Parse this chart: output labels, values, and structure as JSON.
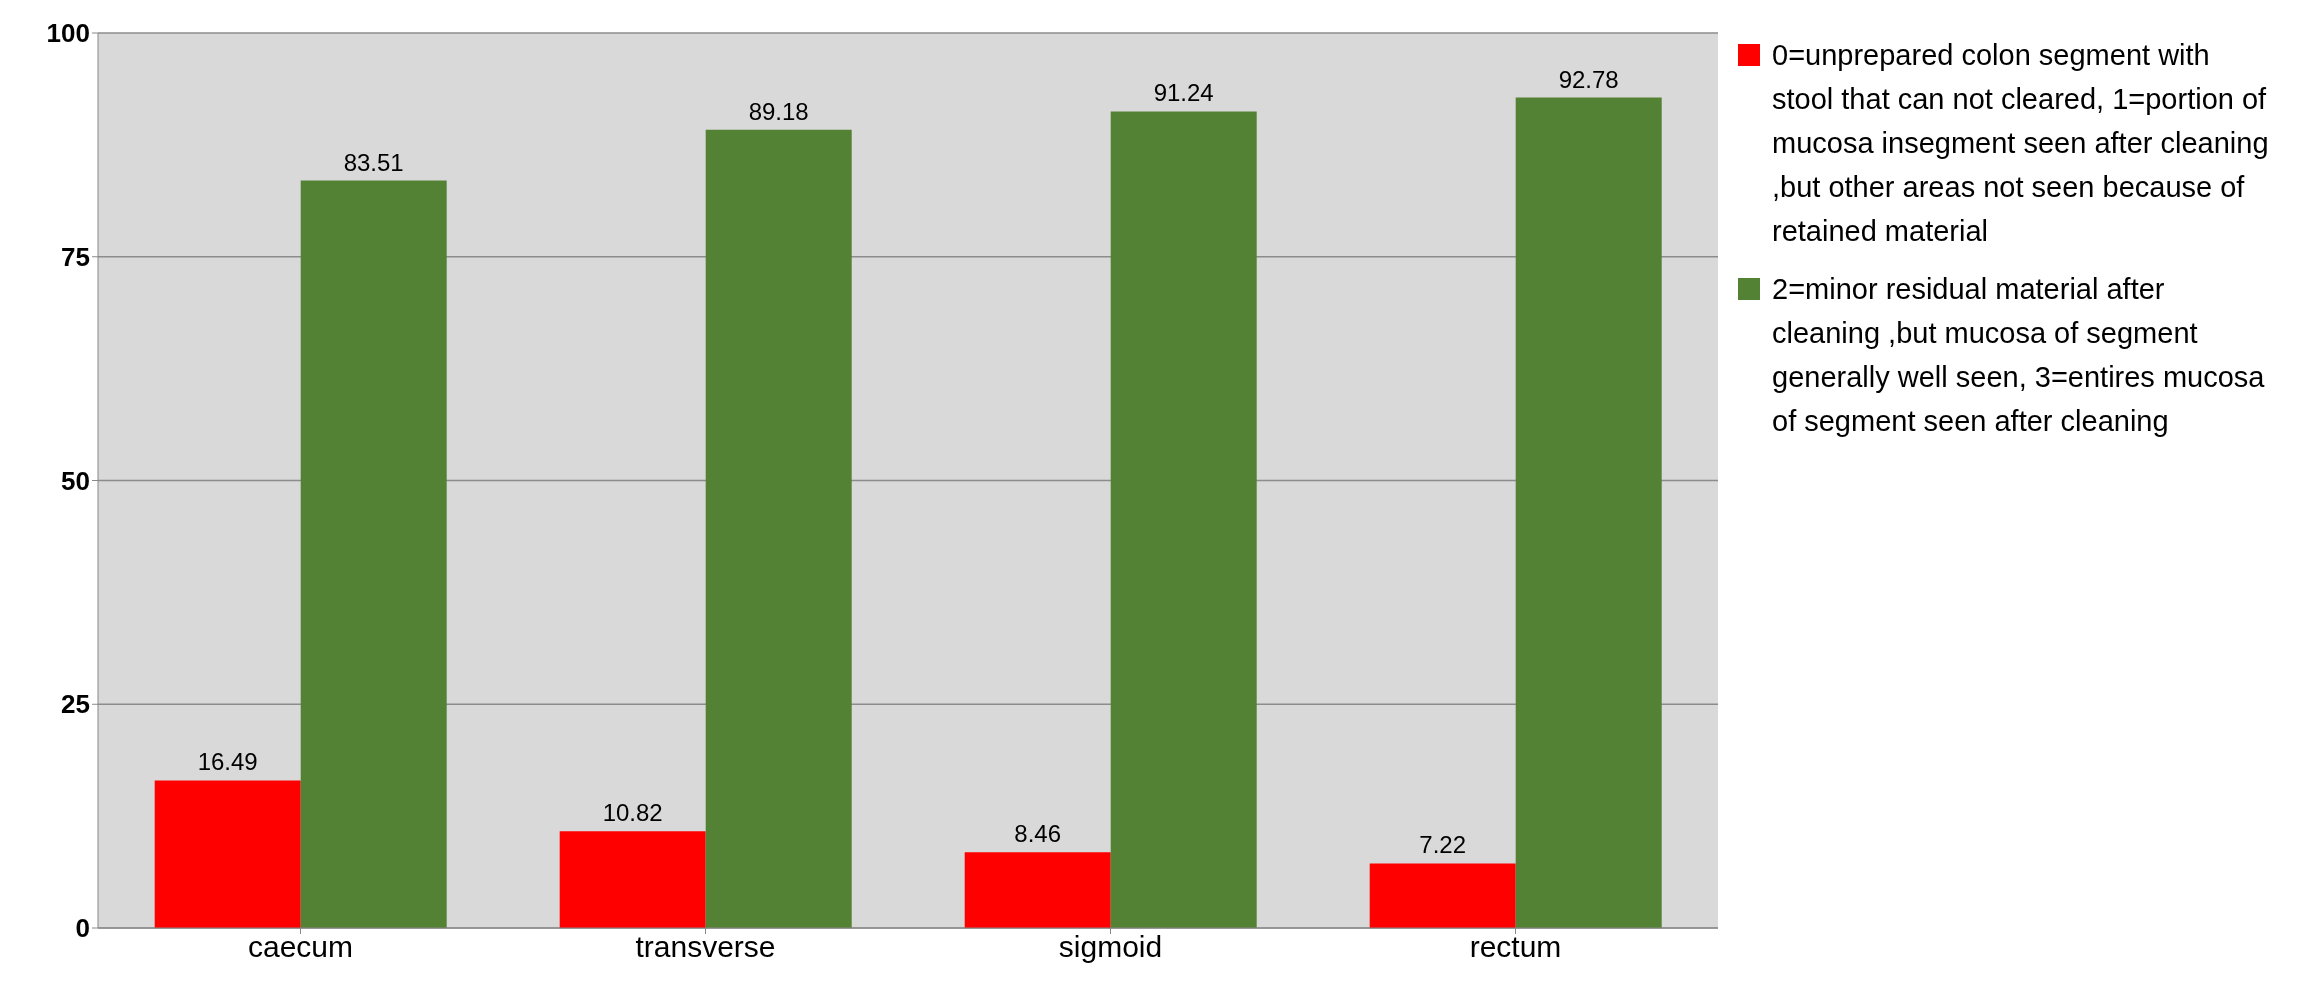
{
  "chart_data": {
    "type": "bar",
    "categories": [
      "caecum",
      "transverse",
      "sigmoid",
      "rectum"
    ],
    "series": [
      {
        "name": "0=unprepared colon segment with stool that can not cleared, 1=portion of mucosa insegment seen after cleaning ,but other areas not seen because of retained material",
        "color": "#ff0000",
        "values": [
          16.49,
          10.82,
          8.46,
          7.22
        ]
      },
      {
        "name": "2=minor residual material after cleaning ,but mucosa of segment generally well seen, 3=entires mucosa of segment seen after cleaning",
        "color": "#548235",
        "values": [
          83.51,
          89.18,
          91.24,
          92.78
        ]
      }
    ],
    "ylim": [
      0,
      100
    ],
    "yticks": [
      0,
      25,
      50,
      75,
      100
    ],
    "grid": "y",
    "legend": "right",
    "data_labels": true
  }
}
